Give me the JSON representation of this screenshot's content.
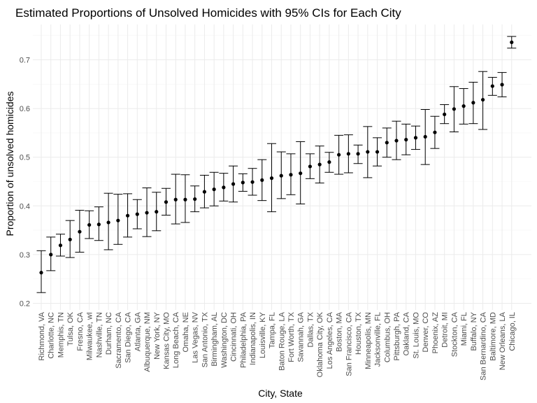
{
  "chart_data": {
    "type": "scatter",
    "title": "Estimated Proportions of Unsolved Homicides with 95% CIs for Each City",
    "xlabel": "City, State",
    "ylabel": "Proportion of unsolved homicides",
    "ylim": [
      0.2,
      0.75
    ],
    "yticks": [
      "0.2",
      "0.3",
      "0.4",
      "0.5",
      "0.6",
      "0.7"
    ],
    "grid": true,
    "legend": "none",
    "categories": [
      "Richmond, VA",
      "Charlotte, NC",
      "Memphis, TN",
      "Tulsa, OK",
      "Fresno, CA",
      "Milwaukee, wI",
      "Nashville, TN",
      "Durham, NC",
      "Sacramento, CA",
      "San Diego, CA",
      "Atlanta, GA",
      "Albuquerque, NM",
      "New York, NY",
      "Kansas City, MO",
      "Long Beach, CA",
      "Omaha, NE",
      "Las Vegas, NV",
      "San Antonio, TX",
      "Birmingham, AL",
      "Washington, DC",
      "Cincinnati, OH",
      "Philadelphia, PA",
      "Indianapolis, IN",
      "Louisville, KY",
      "Tampa, FL",
      "Baton Rouge, LA",
      "Fort Worth, TX",
      "Savannah, GA",
      "Dallas, TX",
      "Oklahoma City, OK",
      "Los Angeles, CA",
      "Boston, MA",
      "San Francisco, CA",
      "Houston, TX",
      "Minneapolis, MN",
      "Jacksonville, FL",
      "Columbus, OH",
      "Pittsburgh, PA",
      "Oakland, CA",
      "St. Louis, MO",
      "Denver, CO",
      "Phoenix, AZ",
      "Detroit, MI",
      "Stockton, CA",
      "Miami, FL",
      "Buffalo, NY",
      "San Bernardino, CA",
      "Baltimore, MD",
      "New Orleans, LA",
      "Chicago, IL"
    ],
    "estimate": [
      0.263,
      0.3,
      0.319,
      0.331,
      0.347,
      0.361,
      0.362,
      0.366,
      0.37,
      0.38,
      0.383,
      0.386,
      0.388,
      0.408,
      0.413,
      0.413,
      0.414,
      0.429,
      0.434,
      0.438,
      0.445,
      0.448,
      0.449,
      0.453,
      0.457,
      0.462,
      0.464,
      0.467,
      0.481,
      0.485,
      0.49,
      0.505,
      0.507,
      0.507,
      0.511,
      0.511,
      0.53,
      0.534,
      0.536,
      0.54,
      0.542,
      0.551,
      0.588,
      0.599,
      0.605,
      0.612,
      0.618,
      0.646,
      0.649,
      0.736
    ],
    "lower": [
      0.222,
      0.267,
      0.297,
      0.294,
      0.305,
      0.333,
      0.329,
      0.31,
      0.321,
      0.336,
      0.353,
      0.337,
      0.349,
      0.381,
      0.363,
      0.366,
      0.388,
      0.396,
      0.4,
      0.41,
      0.408,
      0.43,
      0.422,
      0.411,
      0.388,
      0.415,
      0.423,
      0.404,
      0.456,
      0.447,
      0.469,
      0.465,
      0.468,
      0.487,
      0.458,
      0.482,
      0.5,
      0.495,
      0.505,
      0.516,
      0.485,
      0.518,
      0.569,
      0.552,
      0.568,
      0.569,
      0.557,
      0.627,
      0.624,
      0.724
    ],
    "upper": [
      0.308,
      0.336,
      0.342,
      0.37,
      0.391,
      0.39,
      0.398,
      0.426,
      0.424,
      0.425,
      0.413,
      0.437,
      0.428,
      0.436,
      0.465,
      0.464,
      0.441,
      0.463,
      0.469,
      0.467,
      0.482,
      0.466,
      0.477,
      0.495,
      0.528,
      0.511,
      0.507,
      0.532,
      0.507,
      0.523,
      0.51,
      0.545,
      0.546,
      0.525,
      0.563,
      0.54,
      0.56,
      0.574,
      0.568,
      0.564,
      0.598,
      0.584,
      0.608,
      0.645,
      0.641,
      0.654,
      0.676,
      0.664,
      0.674,
      0.748
    ]
  }
}
